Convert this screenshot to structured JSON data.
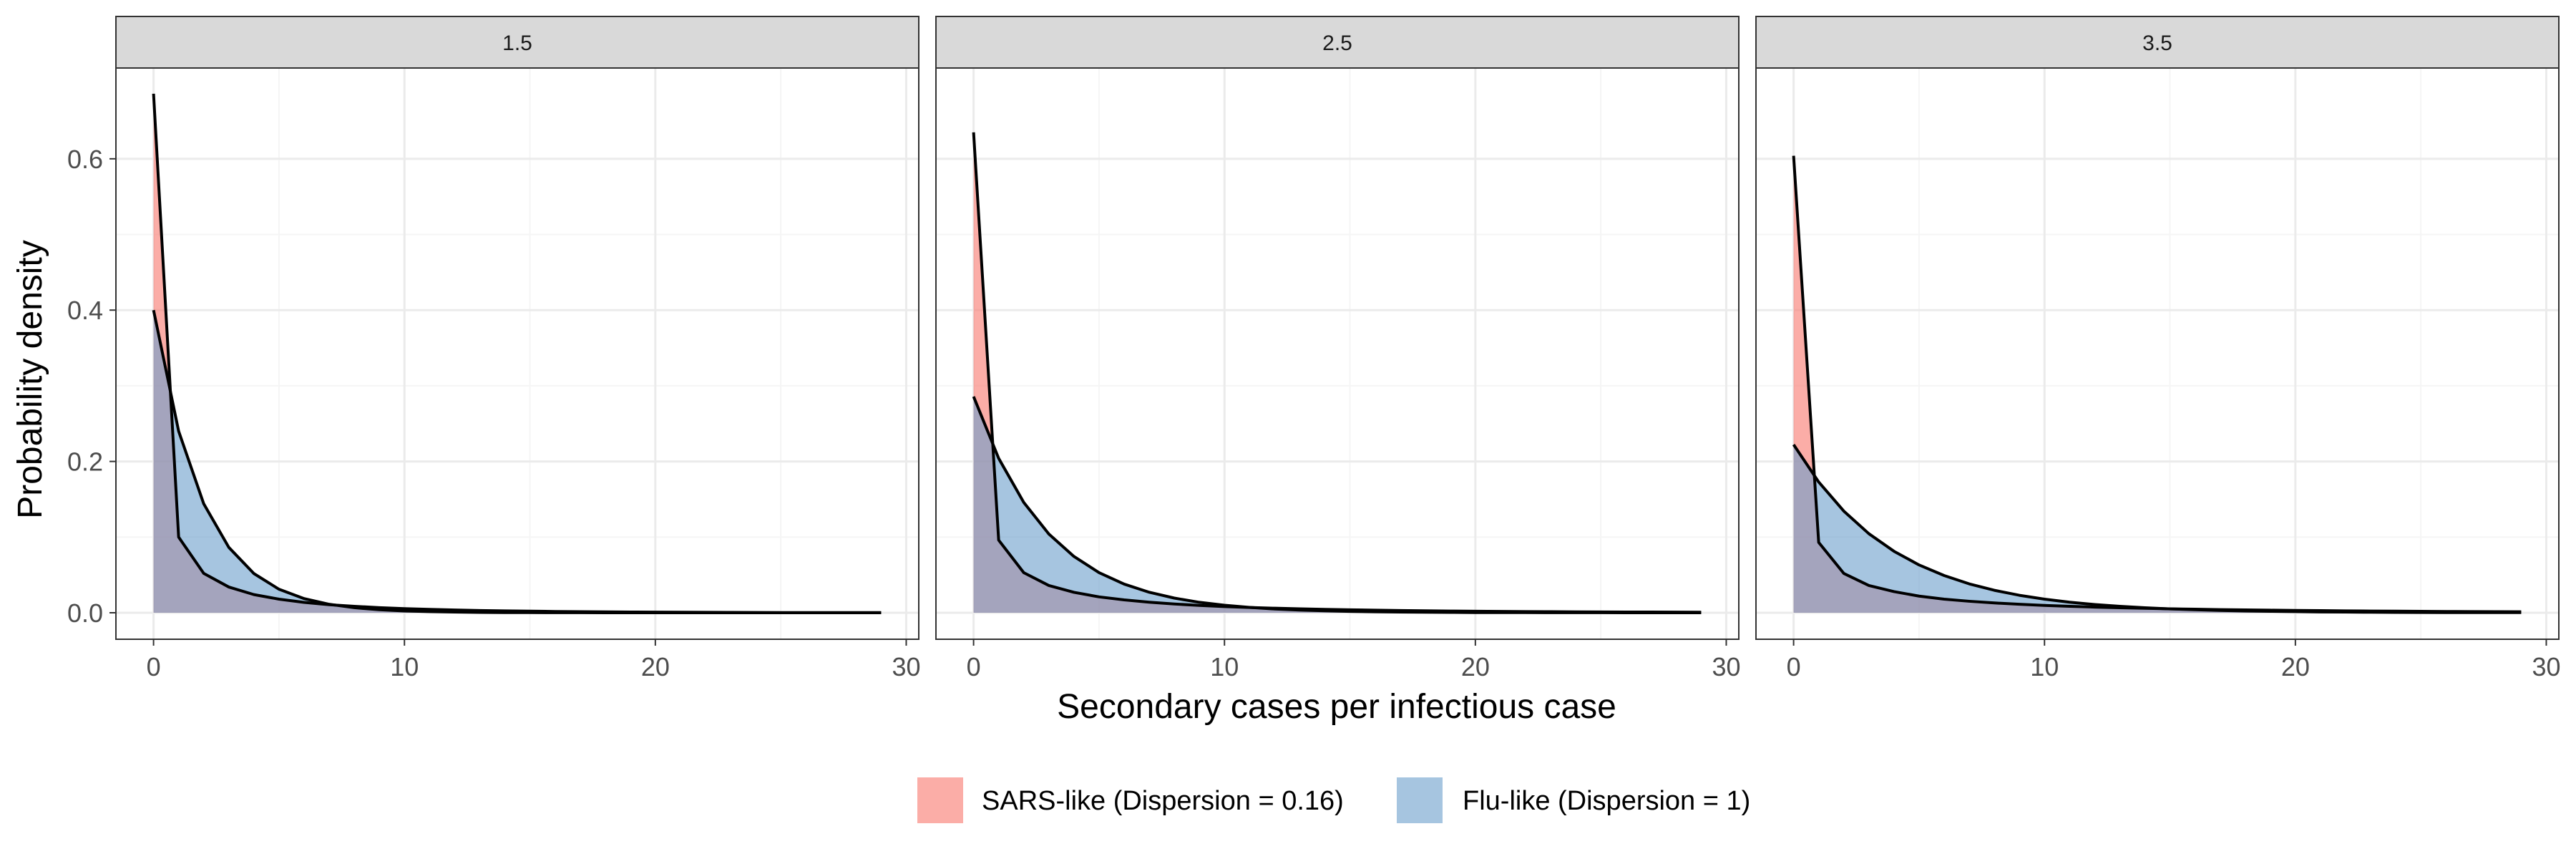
{
  "chart_data": {
    "type": "area",
    "facet_label_prefix": "",
    "facets": [
      "1.5",
      "2.5",
      "3.5"
    ],
    "xlabel": "Secondary cases per infectious case",
    "ylabel": "Probability density",
    "xlim": [
      -1.5,
      30.5
    ],
    "ylim": [
      -0.035,
      0.72
    ],
    "x_ticks": [
      0,
      10,
      20,
      30
    ],
    "x_minor_ticks": [
      5,
      15,
      25
    ],
    "y_ticks": [
      0.0,
      0.2,
      0.4,
      0.6
    ],
    "y_tick_labels": [
      "0.0",
      "0.2",
      "0.4",
      "0.6"
    ],
    "y_minor_ticks": [
      0.1,
      0.3,
      0.5
    ],
    "x_tick_labels": [
      "0",
      "10",
      "20",
      "30"
    ],
    "grid": true,
    "legend_position": "bottom",
    "series_meta": [
      {
        "name": "SARS-like (Dispersion = 0.16)",
        "color": "#F8766D"
      },
      {
        "name": "Flu-like (Dispersion = 1)",
        "color": "#6A9FCB"
      }
    ],
    "panels": [
      {
        "facet": "1.5",
        "x": [
          0,
          1,
          2,
          3,
          4,
          5,
          6,
          7,
          8,
          9,
          10,
          11,
          12,
          13,
          14,
          15,
          16,
          17,
          18,
          19,
          20,
          21,
          22,
          23,
          24,
          25,
          26,
          27,
          28,
          29
        ],
        "series": [
          {
            "name": "SARS-like (Dispersion = 0.16)",
            "values": [
              0.686,
              0.1,
              0.052,
              0.034,
              0.024,
              0.018,
              0.0137,
              0.0107,
              0.0085,
              0.0068,
              0.0055,
              0.0045,
              0.0037,
              0.003,
              0.0025,
              0.0021,
              0.0017,
              0.0014,
              0.0012,
              0.001,
              0.0008,
              0.0007,
              0.0006,
              0.0005,
              0.0004,
              0.0003,
              0.0003,
              0.0002,
              0.0002,
              0.0002
            ]
          },
          {
            "name": "Flu-like (Dispersion = 1)",
            "values": [
              0.4,
              0.24,
              0.144,
              0.0864,
              0.0518,
              0.0311,
              0.0187,
              0.0112,
              0.0067,
              0.004,
              0.0024,
              0.0015,
              0.0009,
              0.0005,
              0.0003,
              0.0002,
              0.0001,
              0.0001,
              0,
              0,
              0,
              0,
              0,
              0,
              0,
              0,
              0,
              0,
              0,
              0
            ]
          }
        ]
      },
      {
        "facet": "2.5",
        "x": [
          0,
          1,
          2,
          3,
          4,
          5,
          6,
          7,
          8,
          9,
          10,
          11,
          12,
          13,
          14,
          15,
          16,
          17,
          18,
          19,
          20,
          21,
          22,
          23,
          24,
          25,
          26,
          27,
          28,
          29
        ],
        "series": [
          {
            "name": "SARS-like (Dispersion = 0.16)",
            "values": [
              0.635,
              0.096,
              0.053,
              0.036,
              0.027,
              0.021,
              0.017,
              0.014,
              0.0116,
              0.0097,
              0.0082,
              0.007,
              0.006,
              0.0052,
              0.0045,
              0.0039,
              0.0034,
              0.003,
              0.0026,
              0.0023,
              0.002,
              0.0018,
              0.0016,
              0.0014,
              0.0012,
              0.0011,
              0.001,
              0.0009,
              0.0008,
              0.0007
            ]
          },
          {
            "name": "Flu-like (Dispersion = 1)",
            "values": [
              0.2857,
              0.2041,
              0.1458,
              0.1041,
              0.0744,
              0.0531,
              0.0379,
              0.0271,
              0.0194,
              0.0138,
              0.0099,
              0.0071,
              0.005,
              0.0036,
              0.0026,
              0.0018,
              0.0013,
              0.0009,
              0.0007,
              0.0005,
              0.0003,
              0.0002,
              0.0002,
              0.0001,
              0.0001,
              0.0001,
              0,
              0,
              0,
              0
            ]
          }
        ]
      },
      {
        "facet": "3.5",
        "x": [
          0,
          1,
          2,
          3,
          4,
          5,
          6,
          7,
          8,
          9,
          10,
          11,
          12,
          13,
          14,
          15,
          16,
          17,
          18,
          19,
          20,
          21,
          22,
          23,
          24,
          25,
          26,
          27,
          28,
          29
        ],
        "series": [
          {
            "name": "SARS-like (Dispersion = 0.16)",
            "values": [
              0.604,
              0.093,
              0.052,
              0.036,
              0.028,
              0.022,
              0.018,
              0.0152,
              0.013,
              0.0112,
              0.0097,
              0.0085,
              0.0075,
              0.0066,
              0.0059,
              0.0052,
              0.0047,
              0.0042,
              0.0038,
              0.0034,
              0.0031,
              0.0028,
              0.0025,
              0.0023,
              0.0021,
              0.0019,
              0.0017,
              0.0016,
              0.0014,
              0.0013
            ]
          },
          {
            "name": "Flu-like (Dispersion = 1)",
            "values": [
              0.2222,
              0.1728,
              0.1344,
              0.1045,
              0.0813,
              0.0632,
              0.0492,
              0.0382,
              0.0297,
              0.0231,
              0.018,
              0.014,
              0.0109,
              0.0085,
              0.0066,
              0.0051,
              0.004,
              0.0031,
              0.0024,
              0.0019,
              0.0015,
              0.0011,
              0.0009,
              0.0007,
              0.0005,
              0.0004,
              0.0003,
              0.0003,
              0.0002,
              0.0002
            ]
          }
        ]
      }
    ]
  },
  "colors": {
    "strip_fill": "#D9D9D9",
    "panel_border": "#333333",
    "grid_major": "#EBEBEB",
    "grid_minor": "#F5F5F5",
    "line": "#000000"
  }
}
